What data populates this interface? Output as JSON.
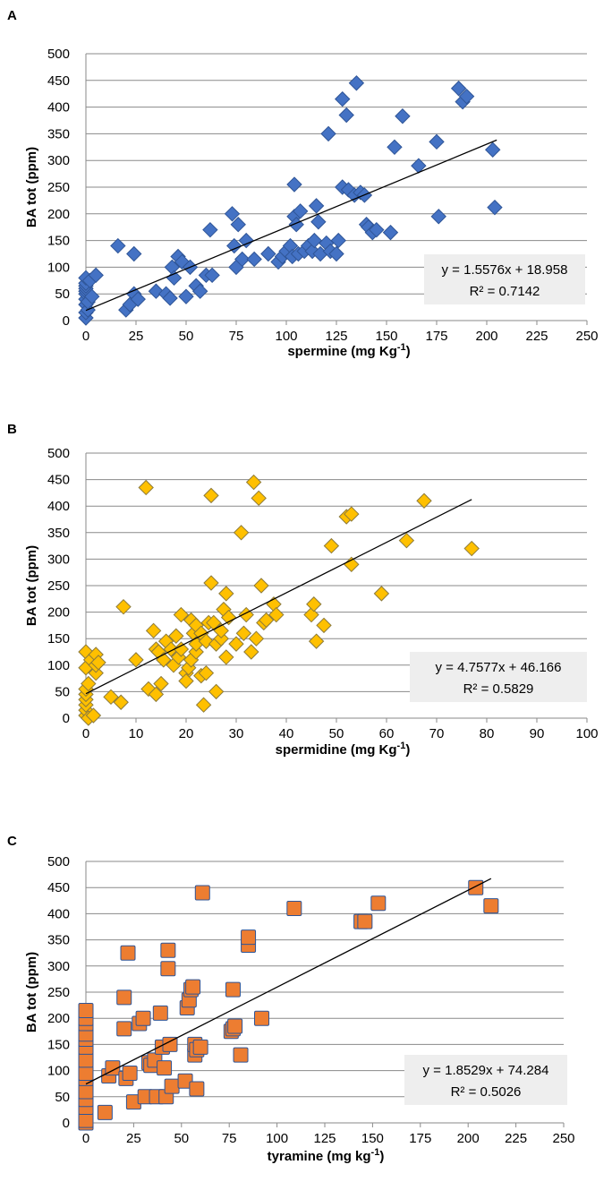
{
  "chart_data": [
    {
      "type": "scatter",
      "panel_label": "A",
      "title": "",
      "xlabel": "spermine (mg Kg",
      "xlabel_sup": "-1",
      "xlabel_end": ")",
      "ylabel": "BA tot (ppm)",
      "xlim": [
        0,
        250
      ],
      "ylim": [
        0,
        500
      ],
      "xticks": [
        0,
        25,
        50,
        75,
        100,
        125,
        150,
        175,
        200,
        225,
        250
      ],
      "yticks": [
        0,
        50,
        100,
        150,
        200,
        250,
        300,
        350,
        400,
        450,
        500
      ],
      "marker": "diamond",
      "color": "#4472C4",
      "edge_color": "#2F5597",
      "grid": "horizontal",
      "trendline": {
        "slope": 1.5576,
        "intercept": 18.958,
        "x_range": [
          0,
          205
        ]
      },
      "equation": "y = 1.5576x + 18.958",
      "r2": "R² = 0.7142",
      "x": [
        0,
        0,
        0,
        0,
        0,
        0,
        0,
        0,
        0,
        0,
        1,
        1,
        2,
        3,
        5,
        16,
        20,
        22,
        24,
        24,
        26,
        35,
        40,
        42,
        43,
        44,
        46,
        48,
        50,
        52,
        55,
        57,
        60,
        62,
        63,
        73,
        74,
        75,
        76,
        78,
        80,
        84,
        91,
        96,
        98,
        100,
        102,
        103,
        104,
        104,
        105,
        106,
        107,
        109,
        111,
        113,
        114,
        115,
        116,
        117,
        120,
        121,
        122,
        125,
        126,
        128,
        128,
        130,
        131,
        134,
        135,
        137,
        139,
        140,
        141,
        143,
        145,
        152,
        154,
        158,
        166,
        175,
        176,
        186,
        188,
        190,
        203,
        204
      ],
      "y": [
        5,
        15,
        30,
        40,
        50,
        55,
        60,
        65,
        70,
        80,
        20,
        35,
        75,
        45,
        85,
        140,
        20,
        30,
        125,
        50,
        40,
        55,
        50,
        42,
        100,
        80,
        120,
        110,
        45,
        100,
        65,
        55,
        85,
        170,
        85,
        200,
        140,
        100,
        180,
        115,
        150,
        115,
        125,
        110,
        120,
        130,
        140,
        120,
        255,
        195,
        180,
        125,
        205,
        130,
        140,
        130,
        150,
        215,
        185,
        125,
        145,
        350,
        130,
        125,
        150,
        250,
        415,
        385,
        245,
        235,
        445,
        240,
        235,
        180,
        175,
        165,
        170,
        165,
        325,
        383,
        290,
        335,
        195,
        435,
        410,
        420,
        320,
        212
      ]
    },
    {
      "type": "scatter",
      "panel_label": "B",
      "title": "",
      "xlabel": "spermidine (mg Kg",
      "xlabel_sup": "-1",
      "xlabel_end": ")",
      "ylabel": "BA tot (ppm)",
      "xlim": [
        0,
        100
      ],
      "ylim": [
        0,
        500
      ],
      "xticks": [
        0,
        10,
        20,
        30,
        40,
        50,
        60,
        70,
        80,
        90,
        100
      ],
      "yticks": [
        0,
        50,
        100,
        150,
        200,
        250,
        300,
        350,
        400,
        450,
        500
      ],
      "marker": "diamond",
      "color": "#FFC000",
      "edge_color": "#8C7A3A",
      "grid": "horizontal",
      "trendline": {
        "slope": 4.7577,
        "intercept": 46.166,
        "x_range": [
          0,
          77
        ]
      },
      "equation": "y = 4.7577x + 46.166",
      "r2": "R² = 0.5829",
      "x": [
        0,
        0,
        0,
        0,
        0,
        0,
        0,
        0,
        0.5,
        0.5,
        1,
        1.5,
        2,
        2,
        2,
        2.5,
        5,
        7,
        7.5,
        10,
        12,
        12.5,
        13.5,
        14,
        14,
        14.5,
        15,
        15.5,
        16,
        17,
        17.5,
        18,
        18.5,
        19,
        19,
        20,
        20,
        20.5,
        21,
        21,
        21.5,
        22,
        22,
        22,
        23,
        23,
        23.5,
        24,
        24,
        24.5,
        25,
        25,
        25.5,
        26,
        26,
        27,
        27,
        27.5,
        28,
        28,
        28.5,
        30,
        31,
        31.5,
        32,
        33,
        33.5,
        34,
        34.5,
        35,
        35.5,
        36,
        37.5,
        38,
        45,
        45.5,
        46,
        47.5,
        49,
        52,
        53,
        53,
        59,
        64,
        67.5,
        77
      ],
      "y": [
        5,
        15,
        25,
        35,
        45,
        55,
        95,
        125,
        0,
        65,
        110,
        5,
        85,
        100,
        120,
        105,
        40,
        30,
        210,
        110,
        435,
        55,
        165,
        130,
        45,
        125,
        65,
        110,
        145,
        130,
        100,
        155,
        115,
        130,
        195,
        85,
        70,
        95,
        110,
        185,
        160,
        125,
        140,
        175,
        160,
        80,
        25,
        145,
        85,
        180,
        255,
        420,
        180,
        140,
        50,
        150,
        165,
        205,
        235,
        115,
        190,
        140,
        350,
        160,
        195,
        125,
        445,
        150,
        415,
        250,
        180,
        185,
        215,
        195,
        195,
        215,
        145,
        175,
        325,
        380,
        385,
        290,
        235,
        335,
        410,
        320
      ]
    },
    {
      "type": "scatter",
      "panel_label": "C",
      "title": "",
      "xlabel": "tyramine (mg kg",
      "xlabel_sup": "-1",
      "xlabel_end": ")",
      "ylabel": "BA tot (ppm)",
      "xlim": [
        0,
        250
      ],
      "ylim": [
        0,
        500
      ],
      "xticks": [
        0,
        25,
        50,
        75,
        100,
        125,
        150,
        175,
        200,
        225,
        250
      ],
      "yticks": [
        0,
        50,
        100,
        150,
        200,
        250,
        300,
        350,
        400,
        450,
        500
      ],
      "marker": "square",
      "color": "#ED7D31",
      "edge_color": "#2F5597",
      "grid": "horizontal",
      "trendline": {
        "slope": 1.8529,
        "intercept": 74.284,
        "x_range": [
          0,
          212
        ]
      },
      "equation": "y = 1.8529x + 74.284",
      "r2": "R² = 0.5026",
      "x": [
        0,
        0,
        0,
        0,
        0,
        0,
        0,
        0,
        0,
        0,
        0,
        0,
        0,
        0,
        10,
        12,
        14,
        20,
        20,
        21,
        22,
        23,
        25,
        28,
        30,
        31,
        33,
        34,
        36,
        37,
        39,
        40,
        41,
        42,
        43,
        43,
        44,
        45,
        52,
        53,
        54,
        55,
        56,
        57,
        57,
        58,
        58,
        60,
        61,
        76,
        77,
        77,
        78,
        81,
        85,
        85,
        92,
        109,
        144,
        146,
        153,
        204,
        212
      ],
      "y": [
        0,
        5,
        30,
        45,
        60,
        85,
        95,
        120,
        145,
        160,
        170,
        190,
        200,
        215,
        20,
        90,
        105,
        180,
        240,
        85,
        325,
        95,
        40,
        190,
        200,
        50,
        115,
        110,
        120,
        50,
        210,
        145,
        105,
        50,
        295,
        330,
        150,
        70,
        80,
        220,
        235,
        255,
        260,
        130,
        150,
        140,
        65,
        145,
        440,
        175,
        180,
        255,
        185,
        130,
        340,
        355,
        200,
        410,
        385,
        385,
        420,
        450,
        415
      ]
    }
  ]
}
